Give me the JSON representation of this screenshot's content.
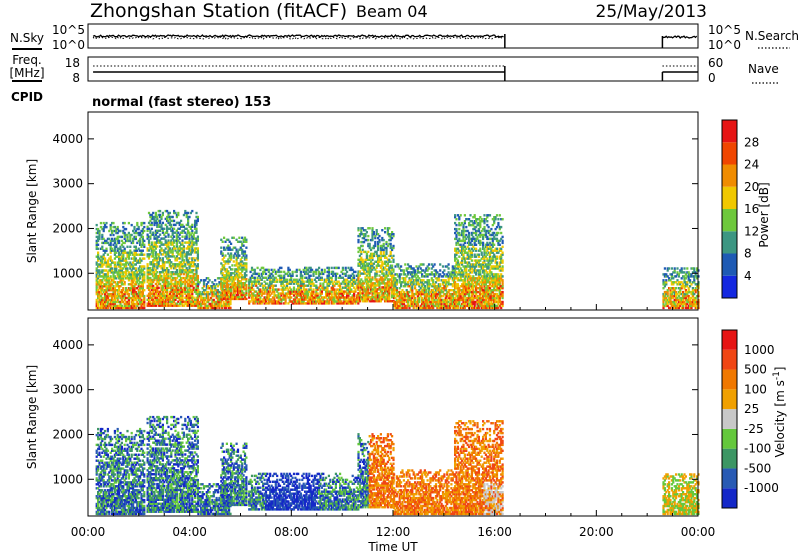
{
  "header": {
    "station": "Zhongshan Station (fitACF)",
    "beam": "Beam 04",
    "date": "25/May/2013"
  },
  "left_labels": {
    "nsky": "N.Sky",
    "freq": "Freq.",
    "freq_unit": "[MHz]",
    "cpid": "CPID"
  },
  "right_labels": {
    "nsearch": "N.Search",
    "nave": "Nave"
  },
  "noise_panel": {
    "y_ticks_left": [
      "10^5",
      "10^0"
    ],
    "y_ticks_right": [
      "10^5",
      "10^0"
    ]
  },
  "freq_panel": {
    "y_ticks_left": [
      "18",
      "8"
    ],
    "y_ticks_right": [
      "60",
      "0"
    ]
  },
  "cpid_text": "normal (fast stereo) 153",
  "chart_data": [
    {
      "type": "heatmap",
      "name": "power",
      "ylabel": "Slant Range [km]",
      "xlabel": "",
      "y_ticks": [
        "4000",
        "3000",
        "2000",
        "1000"
      ],
      "ylim": [
        180,
        4600
      ],
      "xlim": [
        0,
        24
      ],
      "colorbar": {
        "label": "Power [dB]",
        "ticks": [
          "28",
          "24",
          "20",
          "16",
          "12",
          "8",
          "4"
        ],
        "colors": [
          "#1428e0",
          "#1e5ab4",
          "#3c9682",
          "#6ec83c",
          "#f0c800",
          "#f08c00",
          "#f04600",
          "#e61414"
        ]
      },
      "scatter_bands": [
        {
          "t0": 0.3,
          "t1": 2.2,
          "r0": 200,
          "r1": 2100
        },
        {
          "t0": 2.3,
          "t1": 4.3,
          "r0": 250,
          "r1": 2400
        },
        {
          "t0": 4.3,
          "t1": 5.6,
          "r0": 200,
          "r1": 900
        },
        {
          "t0": 5.2,
          "t1": 6.2,
          "r0": 400,
          "r1": 1800
        },
        {
          "t0": 6.3,
          "t1": 10.6,
          "r0": 300,
          "r1": 1100
        },
        {
          "t0": 10.6,
          "t1": 12.0,
          "r0": 350,
          "r1": 2000
        },
        {
          "t0": 12.0,
          "t1": 14.4,
          "r0": 200,
          "r1": 1200
        },
        {
          "t0": 14.4,
          "t1": 16.3,
          "r0": 200,
          "r1": 2300
        },
        {
          "t0": 22.6,
          "t1": 24.0,
          "r0": 200,
          "r1": 1100
        }
      ]
    },
    {
      "type": "heatmap",
      "name": "velocity",
      "ylabel": "Slant Range [km]",
      "xlabel": "Time UT",
      "x_ticks": [
        "00:00",
        "04:00",
        "08:00",
        "12:00",
        "16:00",
        "20:00",
        "00:00"
      ],
      "y_ticks": [
        "4000",
        "3000",
        "2000",
        "1000"
      ],
      "ylim": [
        180,
        4600
      ],
      "xlim": [
        0,
        24
      ],
      "colorbar": {
        "label": "Velocity [m s-1]",
        "ticks": [
          "1000",
          "500",
          "100",
          "25",
          "-25",
          "-100",
          "-500",
          "-1000"
        ],
        "colors": [
          "#1428c8",
          "#285ab4",
          "#3c9664",
          "#64c83c",
          "#c8c8c8",
          "#f0a000",
          "#f07800",
          "#f04614",
          "#e61414"
        ]
      },
      "scatter_bands": [
        {
          "t0": 0.3,
          "t1": 2.2,
          "r0": 200,
          "r1": 2100
        },
        {
          "t0": 2.3,
          "t1": 4.3,
          "r0": 250,
          "r1": 2400
        },
        {
          "t0": 4.3,
          "t1": 5.6,
          "r0": 200,
          "r1": 900
        },
        {
          "t0": 5.2,
          "t1": 6.2,
          "r0": 400,
          "r1": 1800
        },
        {
          "t0": 6.3,
          "t1": 10.6,
          "r0": 300,
          "r1": 1100
        },
        {
          "t0": 10.6,
          "t1": 12.0,
          "r0": 350,
          "r1": 2000
        },
        {
          "t0": 12.0,
          "t1": 14.4,
          "r0": 200,
          "r1": 1200
        },
        {
          "t0": 14.4,
          "t1": 16.3,
          "r0": 200,
          "r1": 2300
        },
        {
          "t0": 22.6,
          "t1": 24.0,
          "r0": 200,
          "r1": 1100
        }
      ]
    }
  ]
}
